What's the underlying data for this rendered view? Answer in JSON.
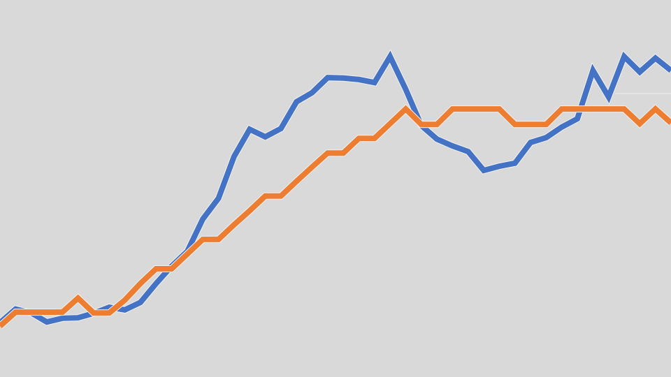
{
  "chart_data": {
    "type": "line",
    "title": "",
    "xlabel": "",
    "ylabel": "",
    "x": [
      1,
      2,
      3,
      4,
      5,
      6,
      7,
      8,
      9,
      10,
      11,
      12,
      13,
      14,
      15,
      16,
      17,
      18,
      19,
      20,
      21,
      22,
      23,
      24,
      25,
      26,
      27,
      28,
      29,
      30,
      31,
      32,
      33,
      34,
      35,
      36,
      37,
      38,
      39,
      40,
      41,
      42,
      43,
      44
    ],
    "xlim": [
      1,
      44
    ],
    "ylim": [
      0,
      100
    ],
    "grid": false,
    "legend": "none",
    "background": "#d9d9d9",
    "series": [
      {
        "color": "#4472c4",
        "values": [
          14.4,
          18.0,
          17.0,
          14.6,
          15.6,
          15.7,
          16.9,
          18.5,
          17.8,
          19.8,
          24.8,
          29.4,
          33.3,
          41.9,
          47.4,
          58.5,
          65.7,
          63.7,
          65.9,
          73.0,
          75.4,
          79.4,
          79.3,
          78.9,
          78.1,
          85.0,
          76.3,
          66.7,
          63.1,
          61.3,
          59.8,
          54.8,
          55.9,
          56.7,
          62.2,
          63.5,
          66.3,
          68.5,
          81.3,
          74.3,
          85.0,
          80.9,
          84.6,
          81.3
        ]
      },
      {
        "color": "#ed7d31",
        "values": [
          13.5,
          17.2,
          17.2,
          17.2,
          17.2,
          20.9,
          17.0,
          17.0,
          20.4,
          24.8,
          28.7,
          28.7,
          32.6,
          36.5,
          36.5,
          40.4,
          44.1,
          48.0,
          48.0,
          51.9,
          55.7,
          59.4,
          59.4,
          63.3,
          63.3,
          67.2,
          71.1,
          67.0,
          67.0,
          71.1,
          71.1,
          71.1,
          71.1,
          67.0,
          67.0,
          67.0,
          71.1,
          71.1,
          71.1,
          71.1,
          71.1,
          67.2,
          71.1,
          67.4
        ]
      }
    ]
  }
}
